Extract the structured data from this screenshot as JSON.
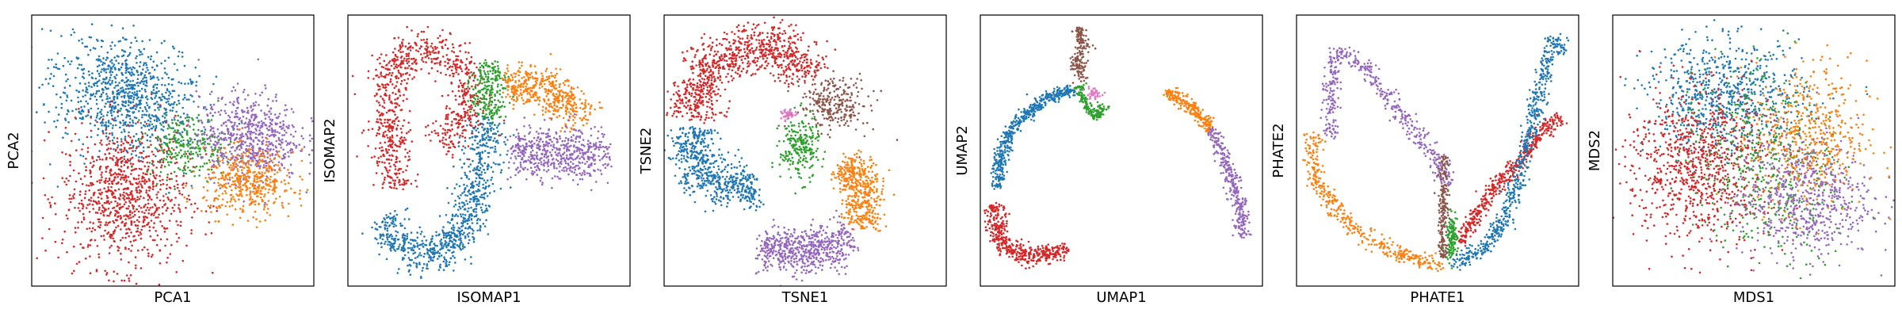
{
  "palette": {
    "blue": "#1f77b4",
    "orange": "#ff7f0e",
    "green": "#2ca02c",
    "red": "#d62728",
    "purple": "#9467bd",
    "brown": "#8c564b",
    "pink": "#e377c2"
  },
  "chart_data": [
    {
      "type": "scatter",
      "title": "",
      "xlabel": "PCA1",
      "ylabel": "PCA2",
      "xticks": [],
      "yticks": [],
      "grid": false,
      "legend": "none",
      "xlim": [
        0,
        1
      ],
      "ylim": [
        0,
        1
      ],
      "clusters": [
        {
          "color": "blue",
          "cx": 0.33,
          "cy": 0.7,
          "sx": 0.13,
          "sy": 0.1,
          "rot": -25,
          "n": 900
        },
        {
          "color": "red",
          "cx": 0.33,
          "cy": 0.33,
          "sx": 0.11,
          "sy": 0.13,
          "rot": 0,
          "n": 900
        },
        {
          "color": "green",
          "cx": 0.55,
          "cy": 0.52,
          "sx": 0.07,
          "sy": 0.06,
          "rot": 0,
          "n": 250
        },
        {
          "color": "purple",
          "cx": 0.77,
          "cy": 0.55,
          "sx": 0.09,
          "sy": 0.08,
          "rot": 0,
          "n": 650
        },
        {
          "color": "orange",
          "cx": 0.77,
          "cy": 0.38,
          "sx": 0.08,
          "sy": 0.06,
          "rot": 0,
          "n": 450
        }
      ]
    },
    {
      "type": "scatter",
      "title": "",
      "xlabel": "ISOMAP1",
      "ylabel": "ISOMAP2",
      "xticks": [],
      "yticks": [],
      "grid": false,
      "legend": "none",
      "xlim": [
        0,
        1
      ],
      "ylim": [
        0,
        1
      ],
      "clusters": [
        {
          "color": "blue",
          "path": [
            [
              0.12,
              0.25
            ],
            [
              0.2,
              0.14
            ],
            [
              0.3,
              0.1
            ],
            [
              0.4,
              0.18
            ],
            [
              0.45,
              0.34
            ],
            [
              0.48,
              0.5
            ],
            [
              0.5,
              0.62
            ]
          ],
          "w": 0.035,
          "n": 850
        },
        {
          "color": "red",
          "path": [
            [
              0.17,
              0.36
            ],
            [
              0.15,
              0.55
            ],
            [
              0.14,
              0.72
            ],
            [
              0.18,
              0.85
            ],
            [
              0.3,
              0.88
            ],
            [
              0.4,
              0.83
            ],
            [
              0.44,
              0.72
            ],
            [
              0.4,
              0.6
            ],
            [
              0.32,
              0.52
            ]
          ],
          "w": 0.035,
          "n": 850
        },
        {
          "color": "green",
          "path": [
            [
              0.49,
              0.62
            ],
            [
              0.5,
              0.72
            ],
            [
              0.5,
              0.82
            ]
          ],
          "w": 0.03,
          "n": 230
        },
        {
          "color": "orange",
          "path": [
            [
              0.56,
              0.73
            ],
            [
              0.66,
              0.76
            ],
            [
              0.76,
              0.7
            ],
            [
              0.83,
              0.6
            ]
          ],
          "w": 0.035,
          "n": 450
        },
        {
          "color": "purple",
          "path": [
            [
              0.58,
              0.5
            ],
            [
              0.7,
              0.48
            ],
            [
              0.82,
              0.48
            ],
            [
              0.92,
              0.5
            ]
          ],
          "w": 0.045,
          "n": 550
        }
      ]
    },
    {
      "type": "scatter",
      "title": "",
      "xlabel": "TSNE1",
      "ylabel": "TSNE2",
      "xticks": [],
      "yticks": [],
      "grid": false,
      "legend": "none",
      "xlim": [
        0,
        1
      ],
      "ylim": [
        0,
        1
      ],
      "clusters": [
        {
          "color": "red",
          "path": [
            [
              0.1,
              0.62
            ],
            [
              0.12,
              0.76
            ],
            [
              0.22,
              0.86
            ],
            [
              0.35,
              0.9
            ],
            [
              0.46,
              0.86
            ],
            [
              0.5,
              0.77
            ]
          ],
          "w": 0.045,
          "n": 900
        },
        {
          "color": "blue",
          "path": [
            [
              0.1,
              0.58
            ],
            [
              0.11,
              0.45
            ],
            [
              0.17,
              0.38
            ],
            [
              0.25,
              0.35
            ],
            [
              0.33,
              0.38
            ]
          ],
          "w": 0.04,
          "n": 600
        },
        {
          "color": "brown",
          "cx": 0.6,
          "cy": 0.67,
          "sx": 0.06,
          "sy": 0.05,
          "rot": -20,
          "n": 280
        },
        {
          "color": "green",
          "cx": 0.48,
          "cy": 0.51,
          "sx": 0.035,
          "sy": 0.06,
          "rot": 0,
          "n": 230
        },
        {
          "color": "pink",
          "cx": 0.44,
          "cy": 0.63,
          "sx": 0.012,
          "sy": 0.01,
          "rot": 0,
          "n": 40
        },
        {
          "color": "orange",
          "path": [
            [
              0.64,
              0.46
            ],
            [
              0.7,
              0.4
            ],
            [
              0.72,
              0.3
            ],
            [
              0.68,
              0.22
            ]
          ],
          "w": 0.035,
          "n": 450
        },
        {
          "color": "purple",
          "path": [
            [
              0.34,
              0.14
            ],
            [
              0.44,
              0.12
            ],
            [
              0.55,
              0.13
            ],
            [
              0.66,
              0.19
            ]
          ],
          "w": 0.04,
          "n": 600
        }
      ]
    },
    {
      "type": "scatter",
      "title": "",
      "xlabel": "UMAP1",
      "ylabel": "UMAP2",
      "xticks": [],
      "yticks": [],
      "grid": false,
      "legend": "none",
      "xlim": [
        0,
        1
      ],
      "ylim": [
        0,
        1
      ],
      "clusters": [
        {
          "color": "brown",
          "path": [
            [
              0.34,
              0.95
            ],
            [
              0.37,
              0.9
            ],
            [
              0.34,
              0.83
            ],
            [
              0.36,
              0.76
            ]
          ],
          "w": 0.012,
          "n": 180
        },
        {
          "color": "green",
          "path": [
            [
              0.35,
              0.74
            ],
            [
              0.37,
              0.67
            ],
            [
              0.41,
              0.62
            ],
            [
              0.44,
              0.67
            ]
          ],
          "w": 0.01,
          "n": 150
        },
        {
          "color": "pink",
          "cx": 0.4,
          "cy": 0.71,
          "sx": 0.015,
          "sy": 0.01,
          "rot": 0,
          "n": 40
        },
        {
          "color": "blue",
          "path": [
            [
              0.33,
              0.73
            ],
            [
              0.22,
              0.68
            ],
            [
              0.12,
              0.6
            ],
            [
              0.07,
              0.48
            ],
            [
              0.06,
              0.36
            ]
          ],
          "w": 0.012,
          "n": 500
        },
        {
          "color": "red",
          "path": [
            [
              0.05,
              0.3
            ],
            [
              0.07,
              0.16
            ],
            [
              0.15,
              0.11
            ],
            [
              0.25,
              0.12
            ],
            [
              0.31,
              0.14
            ]
          ],
          "w": 0.018,
          "n": 450
        },
        {
          "color": "orange",
          "path": [
            [
              0.66,
              0.72
            ],
            [
              0.74,
              0.67
            ],
            [
              0.82,
              0.58
            ]
          ],
          "w": 0.012,
          "n": 220
        },
        {
          "color": "purple",
          "path": [
            [
              0.82,
              0.58
            ],
            [
              0.87,
              0.45
            ],
            [
              0.92,
              0.3
            ],
            [
              0.93,
              0.18
            ]
          ],
          "w": 0.012,
          "n": 300
        }
      ]
    },
    {
      "type": "scatter",
      "title": "",
      "xlabel": "PHATE1",
      "ylabel": "PHATE2",
      "xticks": [],
      "yticks": [],
      "grid": false,
      "legend": "none",
      "xlim": [
        0,
        1
      ],
      "ylim": [
        0,
        1
      ],
      "clusters": [
        {
          "color": "purple",
          "path": [
            [
              0.12,
              0.55
            ],
            [
              0.12,
              0.75
            ],
            [
              0.15,
              0.87
            ],
            [
              0.23,
              0.82
            ],
            [
              0.35,
              0.66
            ],
            [
              0.5,
              0.46
            ],
            [
              0.54,
              0.36
            ]
          ],
          "w": 0.015,
          "n": 450
        },
        {
          "color": "orange",
          "path": [
            [
              0.06,
              0.56
            ],
            [
              0.06,
              0.42
            ],
            [
              0.12,
              0.3
            ],
            [
              0.22,
              0.2
            ],
            [
              0.34,
              0.13
            ],
            [
              0.45,
              0.09
            ],
            [
              0.52,
              0.08
            ]
          ],
          "w": 0.015,
          "n": 400
        },
        {
          "color": "brown",
          "path": [
            [
              0.52,
              0.48
            ],
            [
              0.52,
              0.3
            ],
            [
              0.52,
              0.1
            ]
          ],
          "w": 0.008,
          "n": 200
        },
        {
          "color": "green",
          "cx": 0.55,
          "cy": 0.18,
          "sx": 0.01,
          "sy": 0.04,
          "rot": 0,
          "n": 120
        },
        {
          "color": "red",
          "path": [
            [
              0.58,
              0.16
            ],
            [
              0.67,
              0.32
            ],
            [
              0.78,
              0.45
            ],
            [
              0.87,
              0.57
            ],
            [
              0.94,
              0.62
            ]
          ],
          "w": 0.014,
          "n": 450
        },
        {
          "color": "blue",
          "path": [
            [
              0.55,
              0.08
            ],
            [
              0.66,
              0.14
            ],
            [
              0.74,
              0.25
            ],
            [
              0.8,
              0.45
            ],
            [
              0.85,
              0.68
            ],
            [
              0.89,
              0.84
            ],
            [
              0.91,
              0.92
            ],
            [
              0.95,
              0.86
            ]
          ],
          "w": 0.014,
          "n": 600
        }
      ]
    },
    {
      "type": "scatter",
      "title": "",
      "xlabel": "MDS1",
      "ylabel": "MDS2",
      "xticks": [],
      "yticks": [],
      "grid": false,
      "legend": "none",
      "xlim": [
        0,
        1
      ],
      "ylim": [
        0,
        1
      ],
      "clusters": [
        {
          "color": "blue",
          "cx": 0.4,
          "cy": 0.7,
          "sx": 0.14,
          "sy": 0.1,
          "rot": 0,
          "n": 700
        },
        {
          "color": "red",
          "cx": 0.3,
          "cy": 0.45,
          "sx": 0.13,
          "sy": 0.14,
          "rot": 0,
          "n": 900
        },
        {
          "color": "green",
          "cx": 0.55,
          "cy": 0.45,
          "sx": 0.12,
          "sy": 0.18,
          "rot": 20,
          "n": 450
        },
        {
          "color": "orange",
          "cx": 0.7,
          "cy": 0.55,
          "sx": 0.1,
          "sy": 0.14,
          "rot": 0,
          "n": 500
        },
        {
          "color": "purple",
          "cx": 0.68,
          "cy": 0.32,
          "sx": 0.12,
          "sy": 0.11,
          "rot": 0,
          "n": 600
        }
      ]
    }
  ]
}
